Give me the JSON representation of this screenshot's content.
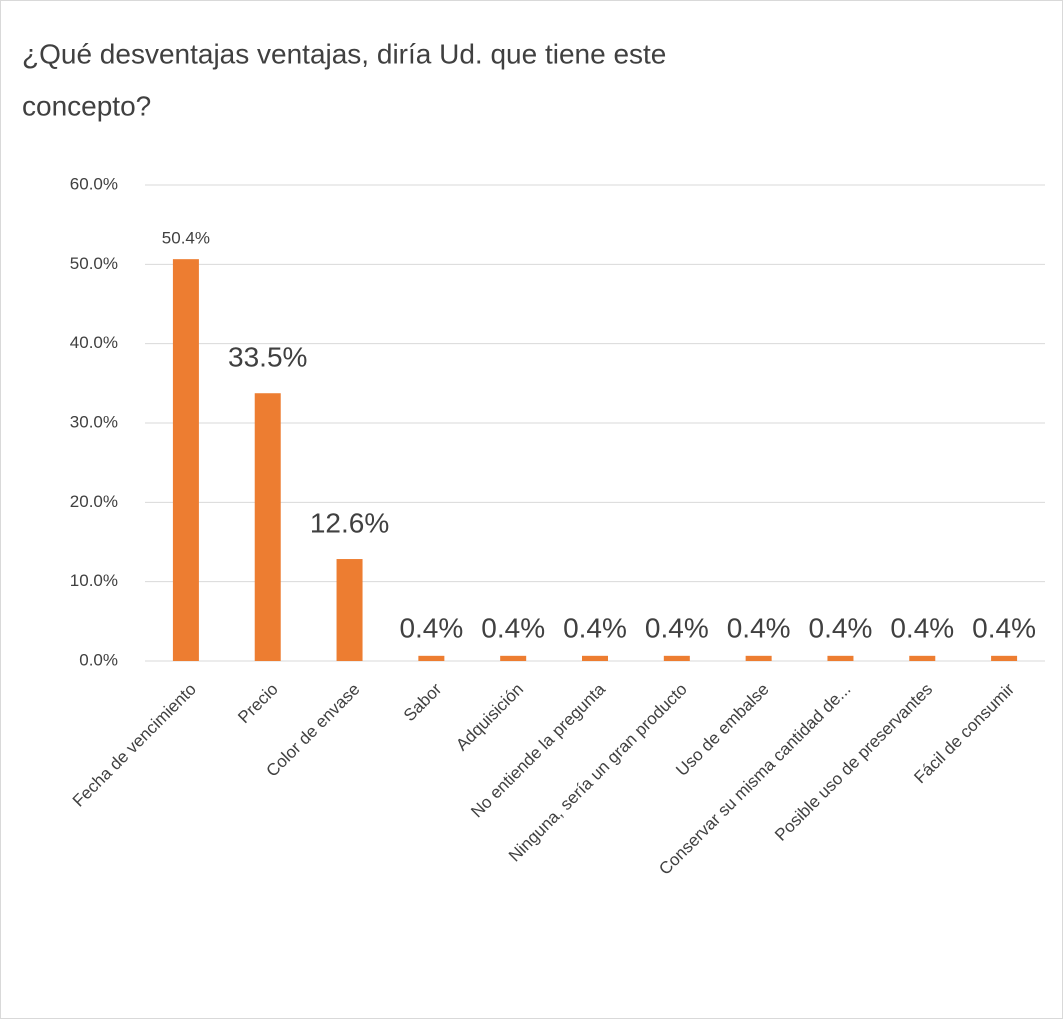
{
  "chart_data": {
    "type": "bar",
    "title": [
      "¿Qué desventajas ventajas, diría Ud. que tiene este",
      "concepto?"
    ],
    "categories": [
      "Fecha de vencimiento",
      "Precio",
      "Color de envase",
      "Sabor",
      "Adquisición",
      "No entiende la pregunta",
      "Ninguna, sería un gran producto",
      "Uso de embalse",
      "Conservar su misma cantidad de...",
      "Posible uso de preservantes",
      "Fácil de consumir"
    ],
    "values": [
      50.4,
      33.5,
      12.6,
      0.4,
      0.4,
      0.4,
      0.4,
      0.4,
      0.4,
      0.4,
      0.4
    ],
    "value_labels": [
      "50.4%",
      "33.5%",
      "12.6%",
      "0.4%",
      "0.4%",
      "0.4%",
      "0.4%",
      "0.4%",
      "0.4%",
      "0.4%",
      "0.4%"
    ],
    "color": "#ed7d31",
    "ylim": [
      0,
      60
    ],
    "yticks": [
      {
        "value": 0,
        "label": "0.0%"
      },
      {
        "value": 10,
        "label": "10.0%"
      },
      {
        "value": 20,
        "label": "20.0%"
      },
      {
        "value": 30,
        "label": "30.0%"
      },
      {
        "value": 40,
        "label": "40.0%"
      },
      {
        "value": 50,
        "label": "50.0%"
      },
      {
        "value": 60,
        "label": "60.0%"
      }
    ],
    "grid": true
  }
}
